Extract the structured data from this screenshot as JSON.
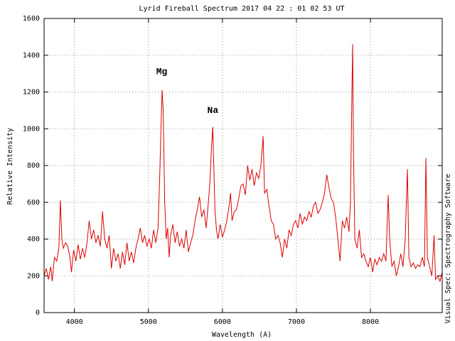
{
  "chart_data": {
    "type": "line",
    "title": "Lyrid Fireball Spectrum 2017 04 22 : 01 02 53 UT",
    "x_label": "Wavelength (A)",
    "y_label": "Relative Intensity",
    "side_label": "Visual Spec: Spectrography Software",
    "annotations": [
      {
        "text": "Mg",
        "x": 5180,
        "y": 1310
      },
      {
        "text": "Na",
        "x": 5870,
        "y": 1100
      }
    ],
    "x": [
      3590,
      3620,
      3650,
      3680,
      3700,
      3730,
      3760,
      3790,
      3810,
      3830,
      3850,
      3880,
      3910,
      3940,
      3960,
      3990,
      4020,
      4050,
      4080,
      4110,
      4140,
      4170,
      4200,
      4230,
      4260,
      4290,
      4320,
      4350,
      4380,
      4410,
      4440,
      4470,
      4500,
      4530,
      4560,
      4590,
      4620,
      4650,
      4680,
      4710,
      4740,
      4770,
      4800,
      4830,
      4860,
      4890,
      4920,
      4950,
      4980,
      5010,
      5040,
      5070,
      5100,
      5130,
      5150,
      5170,
      5185,
      5200,
      5220,
      5240,
      5260,
      5280,
      5300,
      5330,
      5360,
      5390,
      5420,
      5450,
      5480,
      5510,
      5540,
      5570,
      5600,
      5630,
      5660,
      5690,
      5720,
      5750,
      5780,
      5800,
      5830,
      5850,
      5870,
      5880,
      5900,
      5920,
      5940,
      5970,
      6000,
      6030,
      6060,
      6090,
      6110,
      6130,
      6160,
      6190,
      6220,
      6250,
      6280,
      6310,
      6340,
      6370,
      6400,
      6430,
      6460,
      6490,
      6520,
      6550,
      6570,
      6600,
      6630,
      6660,
      6690,
      6720,
      6750,
      6780,
      6810,
      6840,
      6870,
      6900,
      6930,
      6960,
      6990,
      7020,
      7050,
      7080,
      7110,
      7140,
      7170,
      7200,
      7230,
      7260,
      7290,
      7320,
      7350,
      7380,
      7410,
      7440,
      7470,
      7500,
      7530,
      7560,
      7590,
      7620,
      7650,
      7680,
      7710,
      7730,
      7750,
      7760,
      7770,
      7790,
      7820,
      7850,
      7880,
      7910,
      7940,
      7970,
      8000,
      8030,
      8060,
      8090,
      8120,
      8150,
      8180,
      8210,
      8240,
      8260,
      8290,
      8320,
      8350,
      8380,
      8410,
      8440,
      8470,
      8500,
      8520,
      8550,
      8580,
      8610,
      8640,
      8670,
      8700,
      8730,
      8750,
      8770,
      8800,
      8830,
      8860,
      8880,
      8910,
      8940,
      8970
    ],
    "series": [
      {
        "name": "spectrum",
        "color": "#dd0000",
        "values": [
          200,
          240,
          180,
          250,
          170,
          300,
          280,
          350,
          610,
          400,
          350,
          380,
          360,
          300,
          220,
          340,
          280,
          370,
          290,
          350,
          300,
          380,
          500,
          400,
          450,
          380,
          420,
          360,
          550,
          400,
          350,
          420,
          240,
          350,
          280,
          320,
          240,
          330,
          260,
          380,
          280,
          330,
          270,
          350,
          400,
          460,
          380,
          420,
          360,
          400,
          350,
          450,
          380,
          460,
          700,
          1000,
          1210,
          1100,
          600,
          400,
          460,
          300,
          420,
          480,
          380,
          440,
          360,
          400,
          350,
          450,
          330,
          380,
          420,
          500,
          560,
          630,
          520,
          560,
          460,
          550,
          700,
          880,
          1010,
          850,
          550,
          450,
          400,
          480,
          410,
          450,
          500,
          580,
          650,
          500,
          550,
          560,
          620,
          690,
          700,
          640,
          800,
          720,
          780,
          690,
          760,
          730,
          800,
          960,
          650,
          670,
          580,
          500,
          480,
          400,
          420,
          380,
          300,
          400,
          350,
          450,
          420,
          480,
          500,
          460,
          540,
          480,
          520,
          500,
          550,
          520,
          580,
          600,
          540,
          560,
          600,
          650,
          750,
          680,
          620,
          600,
          520,
          400,
          280,
          500,
          460,
          520,
          440,
          600,
          1200,
          1460,
          900,
          400,
          350,
          450,
          300,
          320,
          280,
          250,
          300,
          220,
          290,
          260,
          300,
          280,
          320,
          280,
          640,
          400,
          250,
          280,
          200,
          250,
          320,
          250,
          400,
          780,
          300,
          250,
          270,
          240,
          260,
          250,
          300,
          250,
          840,
          300,
          250,
          200,
          420,
          180,
          200,
          170,
          220
        ]
      }
    ],
    "xlim": [
      3590,
      8970
    ],
    "xticks": [
      4000,
      5000,
      6000,
      7000,
      8000
    ],
    "ylim": [
      0,
      1600
    ],
    "yticks": [
      0,
      200,
      400,
      600,
      800,
      1000,
      1200,
      1400,
      1600
    ],
    "grid": true
  }
}
